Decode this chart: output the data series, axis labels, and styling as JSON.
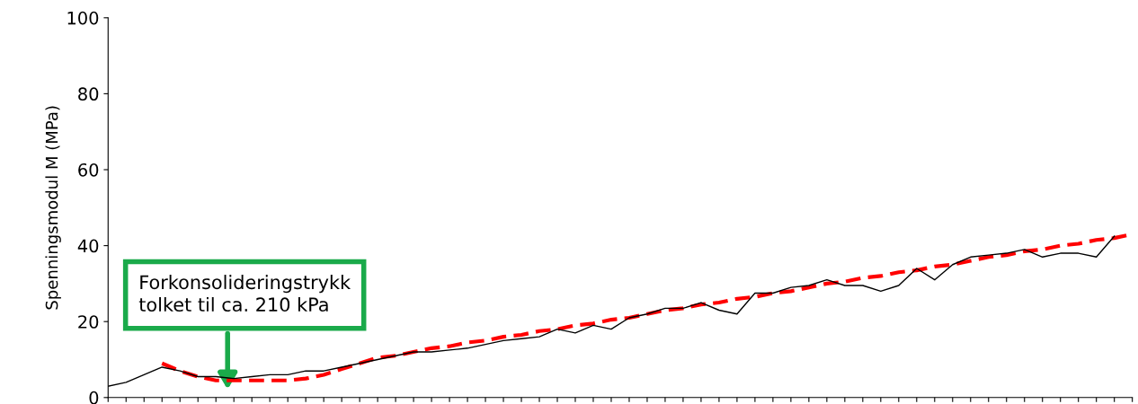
{
  "chart_data": {
    "type": "line",
    "ylabel": "Spenningsmodul M (MPa)",
    "categories": [
      null,
      null,
      null,
      null,
      null,
      null,
      null,
      null,
      null,
      null,
      null,
      null,
      null,
      null,
      null,
      null,
      null,
      null,
      null,
      null,
      null,
      null,
      null,
      null,
      null,
      null,
      null,
      null,
      null,
      null,
      null,
      null,
      null,
      null,
      null,
      null,
      null,
      null,
      null,
      null,
      null,
      null,
      null,
      null,
      null,
      null,
      null,
      null,
      null,
      null,
      null,
      null,
      null,
      null,
      null,
      null,
      null,
      null
    ],
    "series": [
      {
        "color": "#000000",
        "line_style": "solid",
        "values": [
          3,
          4,
          6,
          8,
          7,
          5.5,
          5.5,
          5,
          5.5,
          6,
          6,
          7,
          7,
          8,
          9,
          10,
          11,
          12,
          12,
          12.5,
          13,
          14,
          15,
          15.5,
          16,
          18,
          17,
          19,
          18,
          21,
          22,
          23.5,
          23.5,
          25,
          23,
          22,
          27.5,
          27.5,
          29,
          29.5,
          31,
          29.5,
          29.5,
          28,
          29.5,
          34,
          31,
          35,
          37,
          37.5,
          38,
          39,
          37,
          38,
          38,
          37,
          42.5,
          null
        ]
      },
      {
        "color": "#ff0000",
        "line_style": "dashed",
        "values": [
          null,
          null,
          null,
          9,
          7,
          5.5,
          4.5,
          4.5,
          4.5,
          4.5,
          4.5,
          5,
          6,
          7.5,
          9,
          10.5,
          11,
          12,
          13,
          13.5,
          14.5,
          15,
          16,
          16.5,
          17.5,
          18,
          19,
          19.5,
          20.5,
          21,
          22,
          23,
          23.5,
          24.5,
          25,
          26,
          26.5,
          27.5,
          28,
          29,
          30,
          30.5,
          31.5,
          32,
          33,
          33.5,
          34.5,
          35,
          36,
          37,
          37.5,
          38.5,
          39,
          40,
          40.5,
          41.5,
          42,
          43
        ]
      }
    ],
    "ylim": [
      0,
      100
    ],
    "yticks": [
      0,
      20,
      40,
      60,
      80,
      100
    ],
    "grid": false,
    "legend": false,
    "marker": "none",
    "annotations": [
      "Forkonsolideringstrykk tolket til ca. 210 kPa"
    ]
  }
}
